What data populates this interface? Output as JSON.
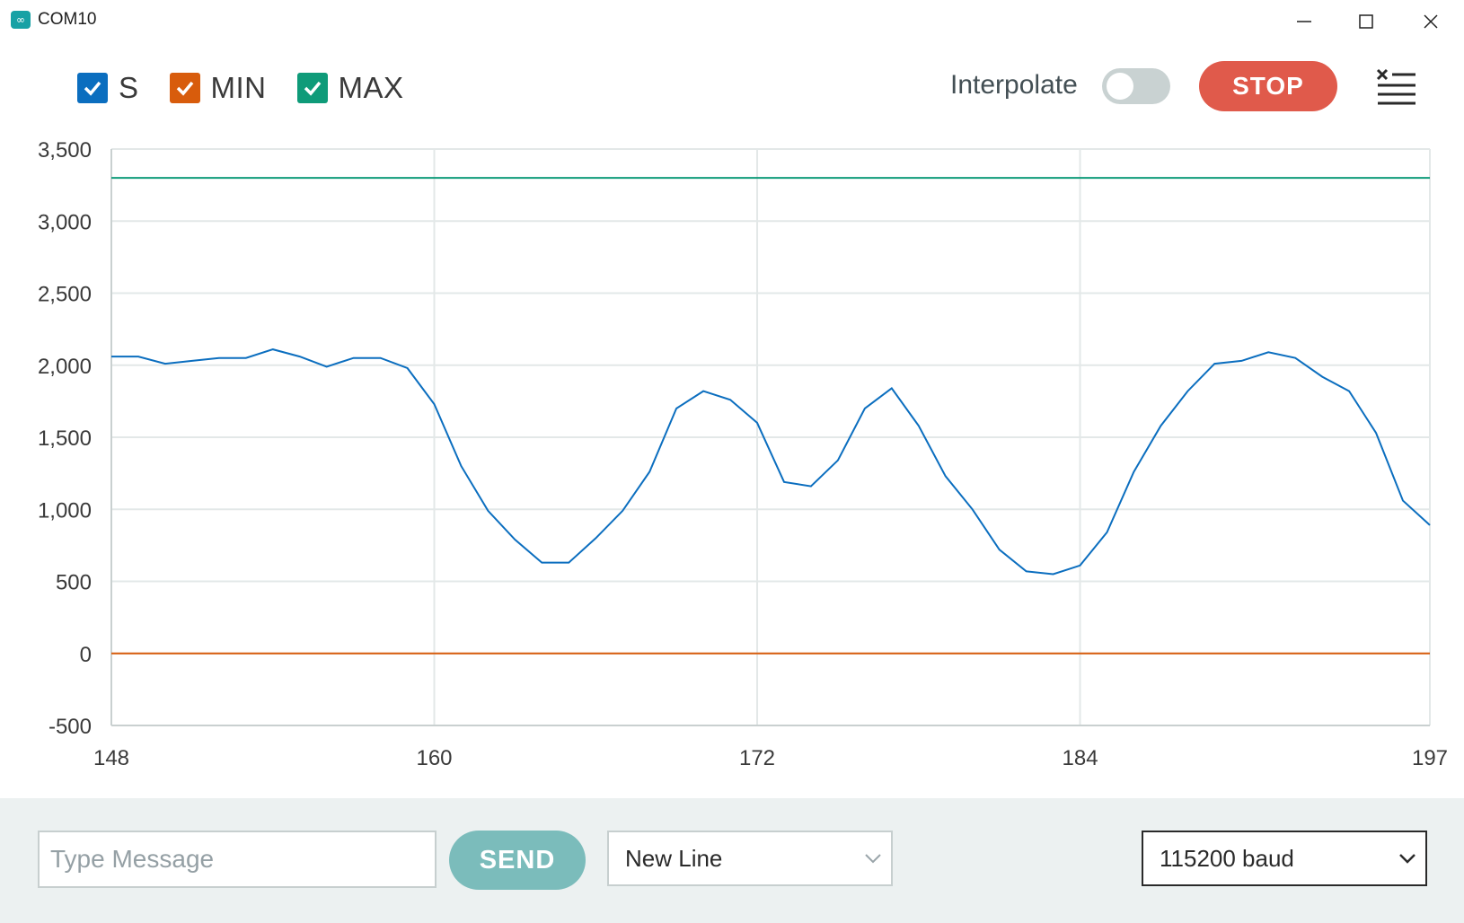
{
  "window": {
    "title": "COM10",
    "app_icon": "arduino-icon"
  },
  "legend": [
    {
      "label": "S",
      "color": "#0b6ebf"
    },
    {
      "label": "MIN",
      "color": "#d85c0c"
    },
    {
      "label": "MAX",
      "color": "#0f9b79"
    }
  ],
  "controls": {
    "interpolate_label": "Interpolate",
    "interpolate_on": false,
    "stop_label": "STOP",
    "clear_icon": "clear-list-icon"
  },
  "chart_data": {
    "type": "line",
    "title": "",
    "xlabel": "",
    "ylabel": "",
    "xlim": [
      148,
      197
    ],
    "ylim": [
      -500,
      3500
    ],
    "xticks": [
      "148",
      "160",
      "172",
      "184",
      "197"
    ],
    "yticks": [
      "3,500",
      "3,000",
      "2,500",
      "2,000",
      "1,500",
      "1,000",
      "500",
      "0",
      "-500"
    ],
    "grid": true,
    "series": [
      {
        "name": "S",
        "color": "#0b6ebf",
        "x": [
          148,
          149,
          150,
          151,
          152,
          153,
          154,
          155,
          156,
          157,
          158,
          159,
          160,
          161,
          162,
          163,
          164,
          165,
          166,
          167,
          168,
          169,
          170,
          171,
          172,
          173,
          174,
          175,
          176,
          177,
          178,
          179,
          180,
          181,
          182,
          183,
          184,
          185,
          186,
          187,
          188,
          189,
          190,
          191,
          192,
          193,
          194,
          195,
          196,
          197
        ],
        "values": [
          2060,
          2060,
          2010,
          2030,
          2050,
          2050,
          2110,
          2060,
          1990,
          2050,
          2050,
          1980,
          1730,
          1300,
          990,
          790,
          630,
          630,
          800,
          990,
          1260,
          1700,
          1820,
          1760,
          1600,
          1190,
          1160,
          1340,
          1700,
          1840,
          1580,
          1230,
          1000,
          720,
          570,
          550,
          610,
          840,
          1260,
          1580,
          1820,
          2010,
          2030,
          2090,
          2050,
          1920,
          1820,
          1530,
          1060,
          890
        ]
      },
      {
        "name": "MIN",
        "color": "#d85c0c",
        "x": [
          148,
          197
        ],
        "values": [
          0,
          0
        ]
      },
      {
        "name": "MAX",
        "color": "#0f9b79",
        "x": [
          148,
          197
        ],
        "values": [
          3300,
          3300
        ]
      }
    ]
  },
  "footer": {
    "message_placeholder": "Type Message",
    "send_label": "SEND",
    "line_ending": "New Line",
    "baud_rate": "115200 baud"
  }
}
